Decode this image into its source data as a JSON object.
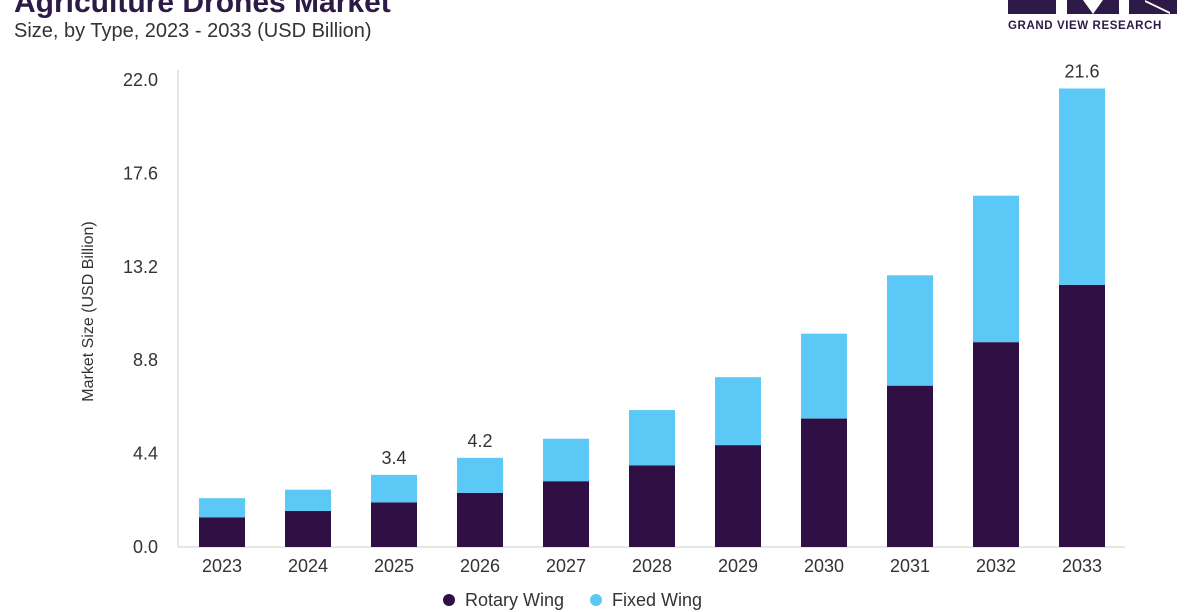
{
  "header": {
    "title": "Agriculture Drones Market",
    "subtitle": "Size, by Type, 2023 - 2033 (USD Billion)"
  },
  "logo": {
    "text": "GRAND VIEW RESEARCH",
    "color": "#2d1a47"
  },
  "colors": {
    "rotary_wing": "#301044",
    "fixed_wing": "#5bc8f5"
  },
  "chart_data": {
    "type": "bar",
    "stacked": true,
    "categories": [
      "2023",
      "2024",
      "2025",
      "2026",
      "2027",
      "2028",
      "2029",
      "2030",
      "2031",
      "2032",
      "2033"
    ],
    "series": [
      {
        "name": "Rotary Wing",
        "color": "#301044",
        "values": [
          1.4,
          1.7,
          2.1,
          2.55,
          3.1,
          3.85,
          4.8,
          6.05,
          7.6,
          9.65,
          12.35
        ]
      },
      {
        "name": "Fixed Wing",
        "color": "#5bc8f5",
        "values": [
          0.9,
          1.0,
          1.3,
          1.65,
          2.0,
          2.6,
          3.2,
          4.0,
          5.2,
          6.9,
          9.25
        ]
      }
    ],
    "totals_labeled": {
      "2025": "3.4",
      "2026": "4.2",
      "2033": "21.6"
    },
    "title": "Agriculture Drones Market",
    "subtitle": "Size, by Type, 2023 - 2033 (USD Billion)",
    "xlabel": "",
    "ylabel": "Market Size (USD Billion)",
    "ylim": [
      0,
      22
    ],
    "yticks": [
      "0.0",
      "4.4",
      "8.8",
      "13.2",
      "17.6",
      "22.0"
    ],
    "grid": false,
    "legend": "bottom"
  }
}
